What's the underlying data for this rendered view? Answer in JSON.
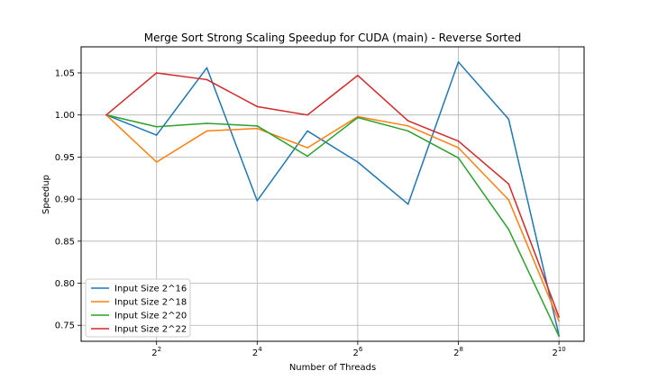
{
  "chart_data": {
    "type": "line",
    "title": "Merge Sort Strong Scaling Speedup for CUDA (main) - Reverse Sorted",
    "xlabel": "Number of Threads",
    "ylabel": "Speedup",
    "x_scale": "log2",
    "x": [
      2,
      4,
      8,
      16,
      32,
      64,
      128,
      256,
      512,
      1024
    ],
    "x_ticks": [
      {
        "value": 4,
        "base": "2",
        "exp": "2"
      },
      {
        "value": 16,
        "base": "2",
        "exp": "4"
      },
      {
        "value": 64,
        "base": "2",
        "exp": "6"
      },
      {
        "value": 256,
        "base": "2",
        "exp": "8"
      },
      {
        "value": 1024,
        "base": "2",
        "exp": "10"
      }
    ],
    "y_ticks": [
      "0.75",
      "0.80",
      "0.85",
      "0.90",
      "0.95",
      "1.00",
      "1.05"
    ],
    "ylim": [
      0.731,
      1.081
    ],
    "xlim_exp": [
      0.5,
      10.5
    ],
    "grid": true,
    "legend_position": "lower-left",
    "series": [
      {
        "name": "Input Size 2^16",
        "color": "#1f77b4",
        "values": [
          1.0,
          0.976,
          1.056,
          0.898,
          0.981,
          0.944,
          0.894,
          1.063,
          0.995,
          0.738
        ]
      },
      {
        "name": "Input Size 2^18",
        "color": "#ff7f0e",
        "values": [
          1.0,
          0.944,
          0.981,
          0.984,
          0.961,
          0.998,
          0.987,
          0.961,
          0.899,
          0.755
        ]
      },
      {
        "name": "Input Size 2^20",
        "color": "#2ca02c",
        "values": [
          1.0,
          0.986,
          0.99,
          0.987,
          0.951,
          0.997,
          0.981,
          0.949,
          0.864,
          0.737
        ]
      },
      {
        "name": "Input Size 2^22",
        "color": "#d62728",
        "values": [
          1.0,
          1.05,
          1.042,
          1.01,
          1.0,
          1.047,
          0.993,
          0.969,
          0.918,
          0.76
        ]
      }
    ]
  }
}
